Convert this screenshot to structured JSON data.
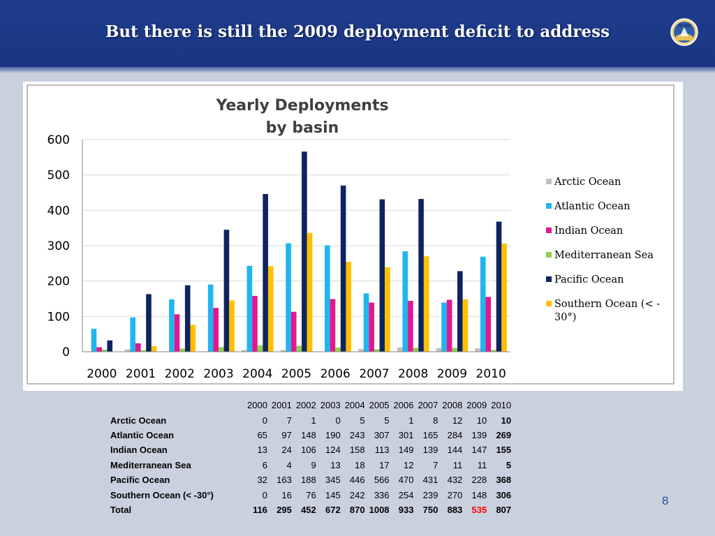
{
  "slide": {
    "title": "But there is still the 2009 deployment deficit to address",
    "logo_text": "Argo",
    "page_number": "8"
  },
  "colors": {
    "header_bg": "#1f3d8c",
    "slide_bg": "#c9d0de",
    "highlight": "#ff0000"
  },
  "chart_data": {
    "type": "bar",
    "title": "Yearly Deployments by basin",
    "title_lines": [
      "Yearly Deployments",
      "by basin"
    ],
    "categories": [
      "2000",
      "2001",
      "2002",
      "2003",
      "2004",
      "2005",
      "2006",
      "2007",
      "2008",
      "2009",
      "2010"
    ],
    "ylim": [
      0,
      600
    ],
    "yticks": [
      0,
      100,
      200,
      300,
      400,
      500,
      600
    ],
    "grid": true,
    "legend_position": "right",
    "series": [
      {
        "name": "Arctic Ocean",
        "color": "#bfbfbf",
        "values": [
          0,
          7,
          1,
          0,
          5,
          5,
          1,
          8,
          12,
          10,
          10
        ]
      },
      {
        "name": "Atlantic Ocean",
        "color": "#1fb6ef",
        "values": [
          65,
          97,
          148,
          190,
          243,
          307,
          301,
          165,
          284,
          139,
          269
        ]
      },
      {
        "name": "Indian Ocean",
        "color": "#e2178f",
        "values": [
          13,
          24,
          106,
          124,
          158,
          113,
          149,
          139,
          144,
          147,
          155
        ]
      },
      {
        "name": "Mediterranean Sea",
        "color": "#8ed14b",
        "values": [
          6,
          4,
          9,
          13,
          18,
          17,
          12,
          7,
          11,
          11,
          5
        ]
      },
      {
        "name": "Pacific Ocean",
        "color": "#0f2360",
        "values": [
          32,
          163,
          188,
          345,
          446,
          566,
          470,
          431,
          432,
          228,
          368
        ]
      },
      {
        "name": "Southern Ocean (< -30°)",
        "color": "#ffc000",
        "values": [
          0,
          16,
          76,
          145,
          242,
          336,
          254,
          239,
          270,
          148,
          306
        ]
      }
    ],
    "legend_labels": [
      [
        "Arctic Ocean"
      ],
      [
        "Atlantic Ocean"
      ],
      [
        "Indian Ocean"
      ],
      [
        "Mediterranean Sea"
      ],
      [
        "Pacific Ocean"
      ],
      [
        "Southern Ocean (< -",
        "30°)"
      ]
    ]
  },
  "table": {
    "years": [
      "2000",
      "2001",
      "2002",
      "2003",
      "2004",
      "2005",
      "2006",
      "2007",
      "2008",
      "2009",
      "2010"
    ],
    "rows": [
      {
        "label": "Arctic Ocean",
        "values": [
          "0",
          "7",
          "1",
          "0",
          "5",
          "5",
          "1",
          "8",
          "12",
          "10",
          "10"
        ]
      },
      {
        "label": "Atlantic Ocean",
        "values": [
          "65",
          "97",
          "148",
          "190",
          "243",
          "307",
          "301",
          "165",
          "284",
          "139",
          "269"
        ]
      },
      {
        "label": "Indian Ocean",
        "values": [
          "13",
          "24",
          "106",
          "124",
          "158",
          "113",
          "149",
          "139",
          "144",
          "147",
          "155"
        ]
      },
      {
        "label": "Mediterranean Sea",
        "values": [
          "6",
          "4",
          "9",
          "13",
          "18",
          "17",
          "12",
          "7",
          "11",
          "11",
          "5"
        ]
      },
      {
        "label": "Pacific Ocean",
        "values": [
          "32",
          "163",
          "188",
          "345",
          "446",
          "566",
          "470",
          "431",
          "432",
          "228",
          "368"
        ]
      },
      {
        "label": "Southern Ocean (< -30°)",
        "values": [
          "0",
          "16",
          "76",
          "145",
          "242",
          "336",
          "254",
          "239",
          "270",
          "148",
          "306"
        ]
      }
    ],
    "total": {
      "label": "Total",
      "values": [
        "116",
        "295",
        "452",
        "672",
        "870",
        "1008",
        "933",
        "750",
        "883",
        "535",
        "807"
      ]
    }
  }
}
